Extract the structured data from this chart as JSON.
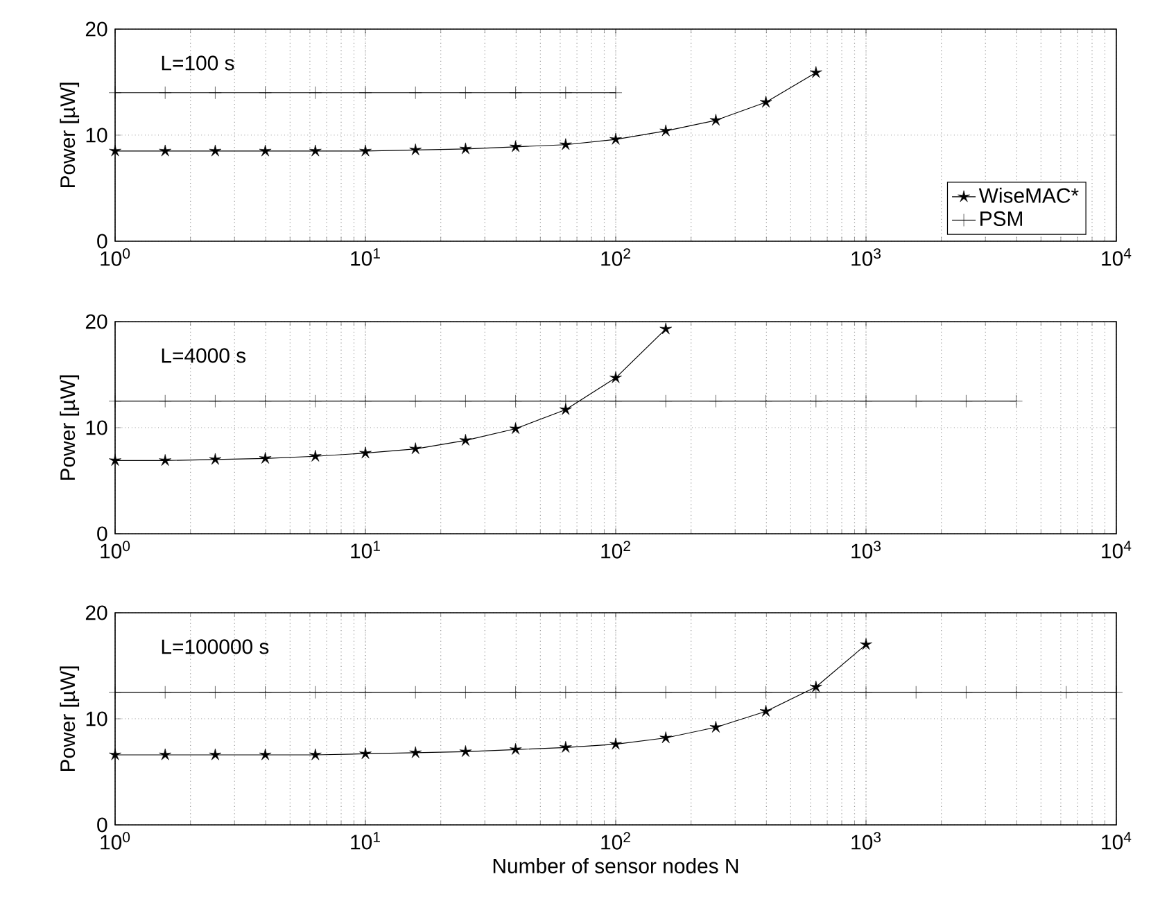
{
  "chart_data": [
    {
      "type": "line",
      "ylabel": "Power [µW]",
      "annotations": [
        "L=100 s"
      ],
      "log": "x",
      "grid": true,
      "legend": "bottom right",
      "xlim": [
        1,
        10000
      ],
      "ylim": [
        0,
        20
      ],
      "yticks": [
        0,
        10,
        20
      ],
      "xticks": [
        {
          "value": 1,
          "label": "10$^{0}$"
        },
        {
          "value": 10,
          "label": "10$^{1}$"
        },
        {
          "value": 100,
          "label": "10$^{2}$"
        },
        {
          "value": 1000,
          "label": "10$^{3}$"
        },
        {
          "value": 10000,
          "label": "10$^{4}$"
        }
      ],
      "series": [
        {
          "name": "WiseMAC*",
          "color": "#000000",
          "marker": "star",
          "line_style": "solid",
          "x": [
            1,
            1.585,
            2.512,
            3.981,
            6.31,
            10,
            15.85,
            25.12,
            39.81,
            63.1,
            100,
            158.5,
            251.2,
            398.1,
            631
          ],
          "values": [
            8.5,
            8.5,
            8.5,
            8.5,
            8.5,
            8.5,
            8.6,
            8.7,
            8.9,
            9.1,
            9.6,
            10.4,
            11.4,
            13.1,
            15.9
          ]
        },
        {
          "name": "PSM",
          "color": "#000000",
          "marker": "cross",
          "line_style": "solid",
          "x": [
            1,
            1.585,
            2.512,
            3.981,
            6.31,
            10,
            15.85,
            25.12,
            39.81,
            63.1,
            100
          ],
          "values": [
            14,
            14,
            14,
            14,
            14,
            14,
            14,
            14,
            14,
            14,
            14
          ]
        }
      ]
    },
    {
      "type": "line",
      "ylabel": "Power [µW]",
      "annotations": [
        "L=4000 s"
      ],
      "log": "x",
      "grid": true,
      "xlim": [
        1,
        10000
      ],
      "ylim": [
        0,
        20
      ],
      "yticks": [
        0,
        10,
        20
      ],
      "xticks": [
        {
          "value": 1,
          "label": "10$^{0}$"
        },
        {
          "value": 10,
          "label": "10$^{1}$"
        },
        {
          "value": 100,
          "label": "10$^{2}$"
        },
        {
          "value": 1000,
          "label": "10$^{3}$"
        },
        {
          "value": 10000,
          "label": "10$^{4}$"
        }
      ],
      "series": [
        {
          "color": "#000000",
          "marker": "star",
          "line_style": "solid",
          "x": [
            1,
            1.585,
            2.512,
            3.981,
            6.31,
            10,
            15.85,
            25.12,
            39.81,
            63.1,
            100,
            158.5
          ],
          "values": [
            6.9,
            6.9,
            7.0,
            7.1,
            7.3,
            7.6,
            8.0,
            8.8,
            9.9,
            11.7,
            14.7,
            19.3
          ]
        },
        {
          "color": "#000000",
          "marker": "cross",
          "line_style": "solid",
          "x": [
            1,
            1.585,
            2.512,
            3.981,
            6.31,
            10,
            15.85,
            25.12,
            39.81,
            63.1,
            100,
            158.5,
            251.2,
            398.1,
            631,
            1000,
            1585,
            2512,
            3981
          ],
          "values": [
            12.5,
            12.5,
            12.5,
            12.5,
            12.5,
            12.5,
            12.5,
            12.5,
            12.5,
            12.5,
            12.5,
            12.5,
            12.5,
            12.5,
            12.5,
            12.5,
            12.5,
            12.5,
            12.5
          ]
        }
      ]
    },
    {
      "type": "line",
      "ylabel": "Power [µW]",
      "xlabel": "Number of sensor nodes N",
      "annotations": [
        "L=100000 s"
      ],
      "log": "x",
      "grid": true,
      "xlim": [
        1,
        10000
      ],
      "ylim": [
        0,
        20
      ],
      "yticks": [
        0,
        10,
        20
      ],
      "xticks": [
        {
          "value": 1,
          "label": "10$^{0}$"
        },
        {
          "value": 10,
          "label": "10$^{1}$"
        },
        {
          "value": 100,
          "label": "10$^{2}$"
        },
        {
          "value": 1000,
          "label": "10$^{3}$"
        },
        {
          "value": 10000,
          "label": "10$^{4}$"
        }
      ],
      "series": [
        {
          "color": "#000000",
          "marker": "star",
          "line_style": "solid",
          "x": [
            1,
            1.585,
            2.512,
            3.981,
            6.31,
            10,
            15.85,
            25.12,
            39.81,
            63.1,
            100,
            158.5,
            251.2,
            398.1,
            631,
            1000
          ],
          "values": [
            6.6,
            6.6,
            6.6,
            6.6,
            6.6,
            6.7,
            6.8,
            6.9,
            7.1,
            7.3,
            7.6,
            8.2,
            9.2,
            10.7,
            13.0,
            17.0
          ]
        },
        {
          "color": "#000000",
          "marker": "cross",
          "line_style": "solid",
          "x": [
            1,
            1.585,
            2.512,
            3.981,
            6.31,
            10,
            15.85,
            25.12,
            39.81,
            63.1,
            100,
            158.5,
            251.2,
            398.1,
            631,
            1000,
            1585,
            2512,
            3981,
            6310,
            10000
          ],
          "values": [
            12.5,
            12.5,
            12.5,
            12.5,
            12.5,
            12.5,
            12.5,
            12.5,
            12.5,
            12.5,
            12.5,
            12.5,
            12.5,
            12.5,
            12.5,
            12.5,
            12.5,
            12.5,
            12.5,
            12.5,
            12.5
          ]
        }
      ]
    }
  ]
}
